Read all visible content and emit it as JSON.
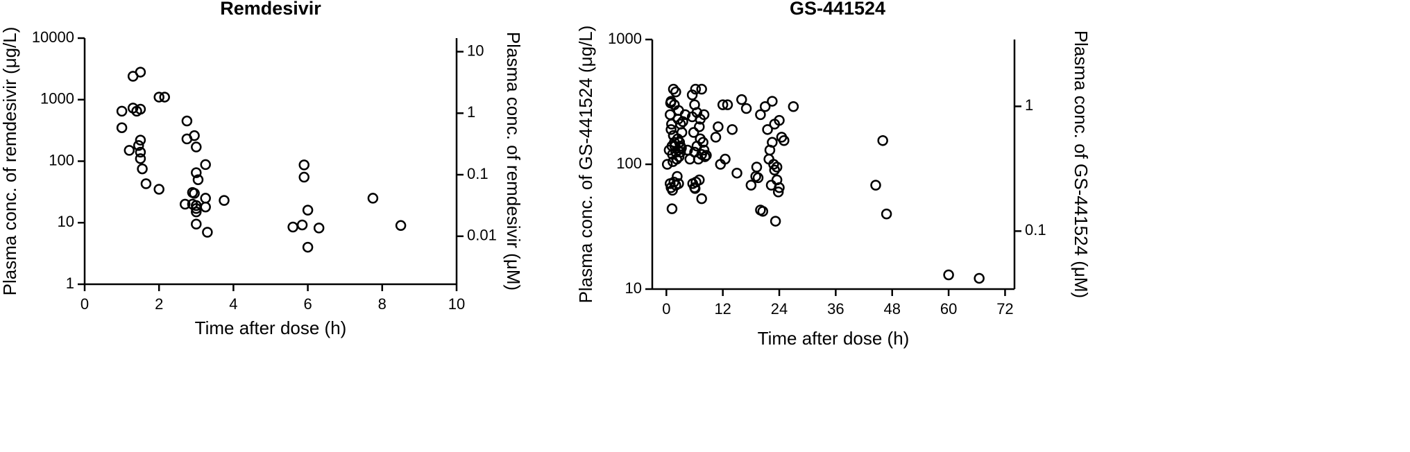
{
  "chart_data": [
    {
      "type": "scatter",
      "title": "Remdesivir",
      "x_label": "Time after dose (h)",
      "y_label": "Plasma conc. of remdesivir (μg/L)",
      "y2_label": "Plasma conc. of remdesivir (μM)",
      "xlim": [
        0,
        10
      ],
      "xticks": [
        0,
        2,
        4,
        6,
        8,
        10
      ],
      "ylim": [
        1,
        10000
      ],
      "yticks": [
        1,
        10,
        100,
        1000,
        10000
      ],
      "log_y": true,
      "y2lim": [
        0.00166,
        16.6
      ],
      "y2ticks": [
        0.01,
        0.1,
        1,
        10
      ],
      "marker_color": "#000000",
      "x": [
        1.0,
        1.0,
        1.2,
        1.3,
        1.4,
        1.3,
        1.5,
        1.5,
        1.5,
        1.45,
        1.5,
        1.5,
        1.55,
        1.65,
        2.0,
        2.0,
        2.15,
        2.75,
        2.75,
        2.95,
        3.0,
        3.25,
        3.0,
        3.05,
        2.9,
        2.95,
        2.7,
        2.9,
        3.0,
        3.0,
        3.0,
        3.25,
        3.25,
        3.0,
        3.3,
        3.75,
        5.9,
        5.9,
        6.0,
        5.6,
        5.85,
        6.0,
        6.3,
        7.75,
        8.5
      ],
      "values": [
        650,
        350,
        150,
        730,
        650,
        2400,
        2800,
        700,
        220,
        180,
        140,
        110,
        75,
        43,
        35,
        1100,
        1100,
        450,
        230,
        260,
        170,
        88,
        65,
        50,
        31,
        30,
        20,
        20,
        17,
        15,
        19,
        25,
        18,
        9.5,
        7,
        23,
        87,
        55,
        16,
        8.5,
        9.2,
        4,
        8.2,
        25,
        9
      ]
    },
    {
      "type": "scatter",
      "title": "GS-441524",
      "x_label": "Time after dose (h)",
      "y_label": "Plasma conc. of GS-441524 (μg/L)",
      "y2_label": "Plasma conc. of GS-441524 (μM)",
      "xlim": [
        -3,
        74
      ],
      "xticks": [
        0,
        12,
        24,
        36,
        48,
        60,
        72
      ],
      "ylim": [
        10,
        1000
      ],
      "yticks": [
        10,
        100,
        1000
      ],
      "log_y": true,
      "y2lim": [
        0.0343,
        3.433
      ],
      "y2ticks": [
        0.1,
        1
      ],
      "marker_color": "#000000",
      "x": [
        0.2,
        0.6,
        0.8,
        1.0,
        1.0,
        1.2,
        1.3,
        1.5,
        1.5,
        1.7,
        1.8,
        2.0,
        2.0,
        2.2,
        2.4,
        2.5,
        2.5,
        2.6,
        2.7,
        2.8,
        3.0,
        3.0,
        3.2,
        3.3,
        0.8,
        1.0,
        1.3,
        1.6,
        2.0,
        2.3,
        2.6,
        3.0,
        1.2,
        1.4,
        1.7,
        0.9,
        1.1,
        1.5,
        2.8,
        3.5,
        4.0,
        4.5,
        5.0,
        5.5,
        5.5,
        5.8,
        6.0,
        6.0,
        6.2,
        6.5,
        6.5,
        6.8,
        7.0,
        7.2,
        7.5,
        7.5,
        7.8,
        8.0,
        8.0,
        8.2,
        6.0,
        6.3,
        7.0,
        7.5,
        5.6,
        6.1,
        7.2,
        8.5,
        10.5,
        11.0,
        11.5,
        12.0,
        12.5,
        13.0,
        14.0,
        15.0,
        16.0,
        17.0,
        18.0,
        19.0,
        19.5,
        20.0,
        20.5,
        21.0,
        21.5,
        22.0,
        22.5,
        22.5,
        23.0,
        23.0,
        23.5,
        23.5,
        24.0,
        24.0,
        24.5,
        25.0,
        21.8,
        22.3,
        23.2,
        23.8,
        22.8,
        20.0,
        19.2,
        27.0,
        44.5,
        46.0,
        46.8,
        60.0,
        66.5
      ],
      "values": [
        100,
        130,
        250,
        320,
        190,
        140,
        120,
        400,
        170,
        300,
        140,
        380,
        125,
        110,
        160,
        230,
        130,
        270,
        115,
        150,
        210,
        125,
        135,
        180,
        70,
        65,
        62,
        72,
        68,
        80,
        70,
        140,
        44,
        105,
        150,
        310,
        210,
        170,
        150,
        220,
        250,
        130,
        110,
        360,
        240,
        180,
        300,
        125,
        400,
        140,
        260,
        110,
        200,
        230,
        120,
        400,
        150,
        130,
        250,
        115,
        65,
        72,
        75,
        53,
        70,
        64,
        160,
        118,
        165,
        200,
        100,
        300,
        110,
        300,
        190,
        85,
        330,
        280,
        68,
        80,
        78,
        250,
        42,
        290,
        190,
        130,
        320,
        150,
        90,
        210,
        95,
        75,
        225,
        65,
        165,
        155,
        110,
        68,
        35,
        60,
        100,
        43,
        95,
        290,
        68,
        155,
        40,
        13,
        12.2
      ]
    }
  ]
}
